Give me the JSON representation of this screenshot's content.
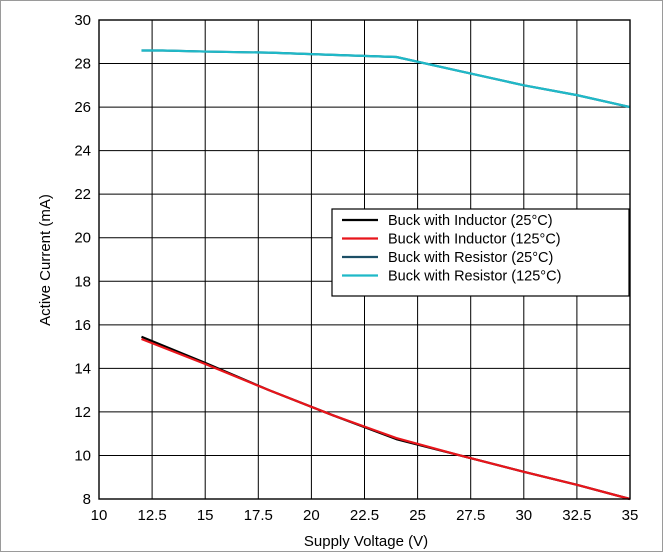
{
  "chart_data": {
    "type": "line",
    "xlabel": "Supply Voltage (V)",
    "ylabel": "Active Current (mA)",
    "xlim": [
      10,
      35
    ],
    "ylim": [
      8,
      30
    ],
    "x_ticks": [
      "10",
      "12.5",
      "15",
      "17.5",
      "20",
      "22.5",
      "25",
      "27.5",
      "30",
      "32.5",
      "35"
    ],
    "y_ticks": [
      "8",
      "10",
      "12",
      "14",
      "16",
      "18",
      "20",
      "22",
      "24",
      "26",
      "28",
      "30"
    ],
    "grid": true,
    "legend_position": "right",
    "series": [
      {
        "name": "Buck with Inductor (25°C)",
        "color": "#000000",
        "x": [
          12,
          15,
          18,
          21,
          24,
          27,
          30,
          32.5,
          35
        ],
        "y": [
          15.45,
          14.25,
          13.0,
          11.85,
          10.75,
          10.0,
          9.25,
          8.65,
          8.0
        ]
      },
      {
        "name": "Buck with Inductor (125°C)",
        "color": "#e8151b",
        "x": [
          12,
          15,
          18,
          21,
          24,
          27,
          30,
          32.5,
          35
        ],
        "y": [
          15.35,
          14.2,
          13.0,
          11.85,
          10.8,
          10.0,
          9.25,
          8.65,
          8.0
        ]
      },
      {
        "name": "Buck with Resistor (25°C)",
        "color": "#1c4f66",
        "x": [
          12,
          13,
          15,
          18,
          21,
          24,
          27,
          30,
          32.5,
          35
        ],
        "y": [
          28.6,
          28.6,
          28.55,
          28.5,
          28.4,
          28.3,
          27.65,
          27.0,
          26.55,
          26.0
        ]
      },
      {
        "name": "Buck with Resistor (125°C)",
        "color": "#1fb9c8",
        "x": [
          12,
          13,
          15,
          18,
          21,
          24,
          27,
          30,
          32.5,
          35
        ],
        "y": [
          28.6,
          28.6,
          28.55,
          28.5,
          28.4,
          28.3,
          27.65,
          27.0,
          26.55,
          26.0
        ]
      }
    ]
  }
}
